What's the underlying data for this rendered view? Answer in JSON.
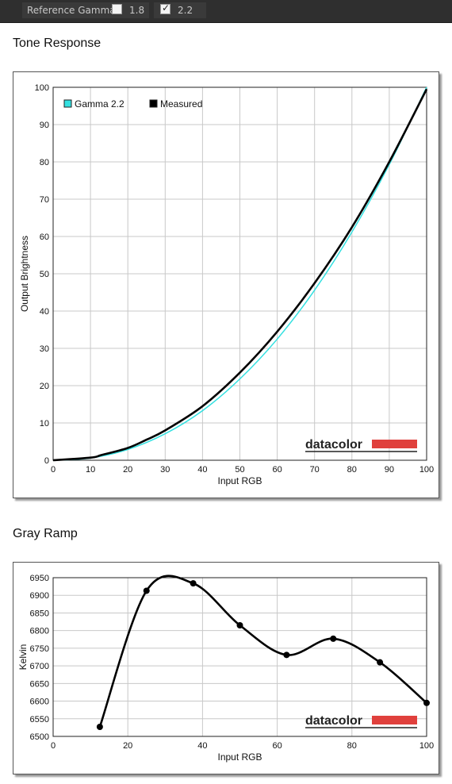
{
  "toolbar": {
    "label": "Reference Gamma:",
    "options": [
      {
        "label": "1.8",
        "checked": false
      },
      {
        "label": "2.2",
        "checked": true
      }
    ]
  },
  "logo_text": "datacolor",
  "chart_data": [
    {
      "type": "line",
      "title": "Tone Response",
      "xlabel": "Input RGB",
      "ylabel": "Output Brightness",
      "xlim": [
        0,
        100
      ],
      "ylim": [
        0,
        100
      ],
      "xticks": [
        0,
        10,
        20,
        30,
        40,
        50,
        60,
        70,
        80,
        90,
        100
      ],
      "yticks": [
        0,
        10,
        20,
        30,
        40,
        50,
        60,
        70,
        80,
        90,
        100
      ],
      "grid": true,
      "legend_position": "top-left",
      "series": [
        {
          "name": "Gamma 2.2",
          "color": "#33e0e0",
          "x": [
            0,
            10,
            20,
            30,
            40,
            50,
            60,
            70,
            80,
            90,
            100
          ],
          "y": [
            0,
            0.6,
            2.9,
            7.1,
            13.3,
            21.8,
            32.5,
            45.6,
            61.2,
            79.3,
            100
          ]
        },
        {
          "name": "Measured",
          "color": "#000000",
          "x": [
            0,
            10,
            13,
            20,
            25,
            30,
            40,
            50,
            60,
            70,
            80,
            90,
            100
          ],
          "y": [
            0,
            0.7,
            1.4,
            3.3,
            5.5,
            8.0,
            14.5,
            23.5,
            34.5,
            47.5,
            62.5,
            80.0,
            99.5
          ]
        }
      ]
    },
    {
      "type": "line",
      "title": "Gray Ramp",
      "xlabel": "Input RGB",
      "ylabel": "Kelvin",
      "xlim": [
        0,
        100
      ],
      "ylim": [
        6500,
        6950
      ],
      "xticks": [
        0,
        20,
        40,
        60,
        80,
        100
      ],
      "yticks": [
        6500,
        6550,
        6600,
        6650,
        6700,
        6750,
        6800,
        6850,
        6900,
        6950
      ],
      "grid": true,
      "series": [
        {
          "color": "#000000",
          "x": [
            12.5,
            25,
            37.5,
            50,
            62.5,
            75,
            87.5,
            100
          ],
          "y": [
            6527,
            6913,
            6934,
            6815,
            6731,
            6777,
            6710,
            6595
          ]
        }
      ]
    }
  ]
}
